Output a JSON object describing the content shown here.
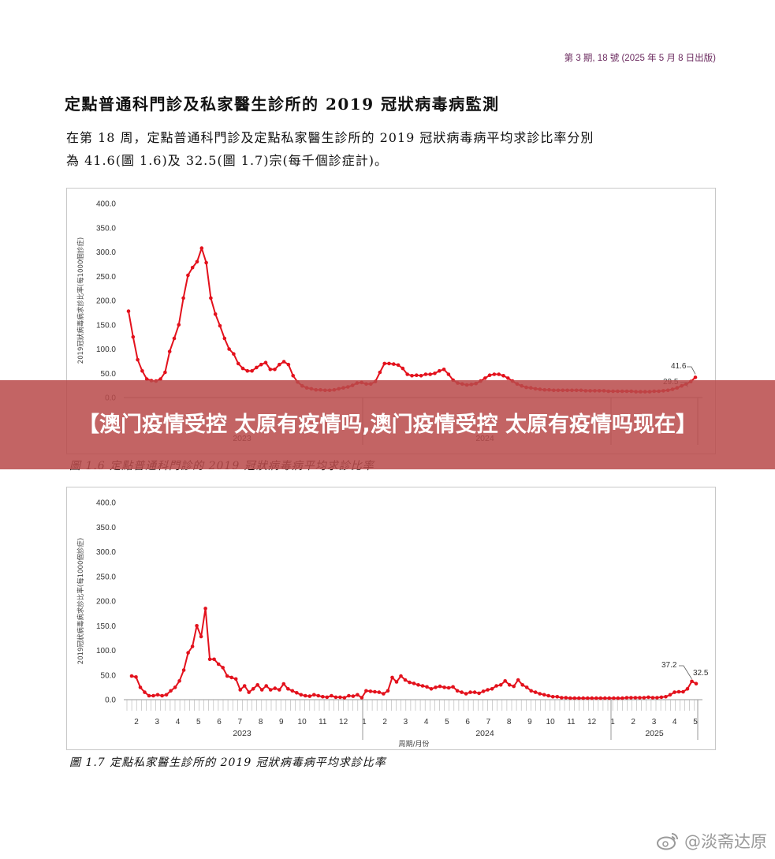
{
  "header": {
    "issue": "第 3 期, 18 號 (2025 年 5 月 8 日出版)"
  },
  "title": "定點普通科門診及私家醫生診所的 2019 冠狀病毒病監測",
  "paragraph": {
    "line1": "在第 18 周，定點普通科門診及定點私家醫生診所的 2019 冠狀病毒病平均求診比率分別",
    "line2": "為 41.6(圖 1.6)及 32.5(圖 1.7)宗(每千個診症計)。"
  },
  "banner": {
    "text": "【澳门疫情受控 太原有疫情吗,澳门疫情受控 太原有疫情吗现在】"
  },
  "watermark": {
    "text": "@淡斋达原",
    "icon": "weibo-icon"
  },
  "colors": {
    "series": "#e3111c",
    "banner": "#b94b4b"
  },
  "chart_data": [
    {
      "type": "line",
      "caption": "圖 1.6  定點普通科門診的 2019 冠狀病毒病平均求診比率",
      "ylabel": "2019冠狀病毒病求診比率(每1000個診症)",
      "ylim": [
        0,
        400
      ],
      "yticks": [
        "400.0",
        "350.0",
        "300.0",
        "250.0",
        "200.0",
        "150.0",
        "100.0",
        "50.0",
        "0.0"
      ],
      "year_labels": [
        "2023",
        "2024"
      ],
      "annotations": [
        "41.6",
        "29.5"
      ],
      "values": [
        178,
        125,
        78,
        55,
        38,
        35,
        34,
        38,
        52,
        95,
        122,
        150,
        205,
        252,
        268,
        280,
        308,
        278,
        205,
        172,
        148,
        122,
        100,
        90,
        70,
        60,
        55,
        55,
        62,
        68,
        72,
        58,
        58,
        68,
        74,
        68,
        45,
        32,
        24,
        20,
        18,
        16,
        16,
        15,
        15,
        16,
        18,
        20,
        22,
        25,
        30,
        31,
        28,
        28,
        33,
        52,
        70,
        70,
        69,
        67,
        60,
        48,
        45,
        46,
        45,
        48,
        48,
        50,
        55,
        58,
        48,
        36,
        30,
        28,
        26,
        27,
        29,
        34,
        40,
        46,
        48,
        48,
        45,
        40,
        34,
        28,
        24,
        21,
        20,
        18,
        17,
        16,
        16,
        15,
        15,
        15,
        15,
        15,
        15,
        15,
        14,
        14,
        14,
        14,
        14,
        13,
        13,
        13,
        13,
        13,
        13,
        12,
        12,
        12,
        12,
        13,
        13,
        14,
        15,
        17,
        20,
        24,
        28,
        33,
        41.6
      ]
    },
    {
      "type": "line",
      "caption": "圖 1.7  定點私家醫生診所的 2019 冠狀病毒病平均求診比率",
      "ylabel": "2019冠狀病毒病求診比率(每1000個診症)",
      "xlabel": "周期/月份",
      "ylim": [
        0,
        400
      ],
      "yticks": [
        "400.0",
        "350.0",
        "300.0",
        "250.0",
        "200.0",
        "150.0",
        "100.0",
        "50.0",
        "0.0"
      ],
      "month_labels": [
        "2",
        "3",
        "4",
        "5",
        "6",
        "7",
        "8",
        "9",
        "10",
        "11",
        "12",
        "1",
        "2",
        "3",
        "4",
        "5",
        "6",
        "7",
        "8",
        "9",
        "10",
        "11",
        "12",
        "1",
        "2",
        "3",
        "4",
        "5"
      ],
      "year_labels": [
        "2023",
        "2024",
        "2025"
      ],
      "annotations": [
        "37.2",
        "32.5"
      ],
      "values": [
        48,
        46,
        25,
        15,
        8,
        8,
        10,
        8,
        10,
        18,
        25,
        38,
        60,
        95,
        108,
        150,
        128,
        185,
        82,
        82,
        72,
        65,
        48,
        45,
        42,
        20,
        28,
        15,
        22,
        30,
        20,
        28,
        20,
        23,
        20,
        32,
        22,
        18,
        14,
        10,
        8,
        7,
        10,
        8,
        6,
        5,
        8,
        5,
        5,
        4,
        8,
        7,
        10,
        4,
        18,
        17,
        16,
        15,
        12,
        18,
        45,
        36,
        48,
        40,
        35,
        33,
        30,
        28,
        26,
        22,
        25,
        27,
        25,
        24,
        26,
        18,
        15,
        12,
        15,
        15,
        13,
        17,
        20,
        22,
        28,
        30,
        38,
        30,
        27,
        40,
        30,
        25,
        18,
        15,
        12,
        10,
        8,
        6,
        6,
        4,
        4,
        3,
        3,
        3,
        3,
        3,
        3,
        3,
        3,
        3,
        3,
        3,
        3,
        3,
        4,
        4,
        4,
        4,
        4,
        5,
        4,
        4,
        5,
        6,
        10,
        15,
        16,
        16,
        22,
        37.2,
        32.5
      ]
    }
  ]
}
